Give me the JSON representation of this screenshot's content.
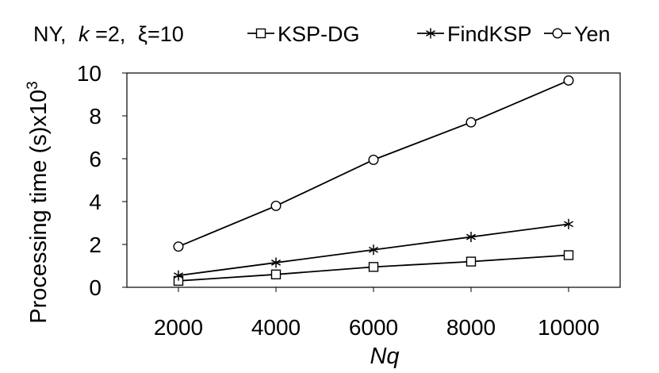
{
  "chart_data": {
    "type": "line",
    "title_prefix": "NY,",
    "title_k_symbol": "k",
    "title_k_value": "=2,",
    "title_xi": "ξ=10",
    "xlabel": "Nq",
    "ylabel_base": "Processing time (s)x10",
    "ylabel_exp": "3",
    "x": [
      2000,
      4000,
      6000,
      8000,
      10000
    ],
    "x_tick_labels": [
      "2000",
      "4000",
      "6000",
      "8000",
      "10000"
    ],
    "ylim": [
      0,
      10
    ],
    "y_ticks": [
      0,
      2,
      4,
      6,
      8,
      10
    ],
    "y_tick_labels": [
      "0",
      "2",
      "4",
      "6",
      "8",
      "10"
    ],
    "grid": false,
    "legend_placement": "top",
    "series": [
      {
        "name": "KSP-DG",
        "marker": "square",
        "values": [
          0.3,
          0.6,
          0.95,
          1.2,
          1.5
        ]
      },
      {
        "name": "FindKSP",
        "marker": "asterisk",
        "values": [
          0.55,
          1.15,
          1.75,
          2.35,
          2.95
        ]
      },
      {
        "name": "Yen",
        "marker": "circle",
        "values": [
          1.9,
          3.8,
          5.95,
          7.7,
          9.65
        ]
      }
    ],
    "line_color": "#000000"
  }
}
